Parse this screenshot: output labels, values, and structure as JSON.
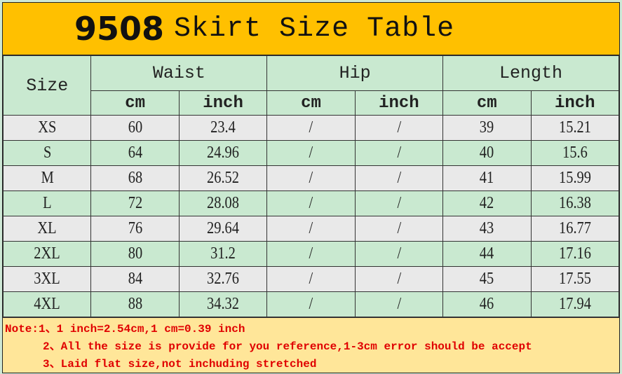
{
  "title": {
    "number": "9508",
    "text": "Skirt Size Table"
  },
  "headers": {
    "size": "Size",
    "groups": [
      "Waist",
      "Hip",
      "Length"
    ],
    "units": [
      "cm",
      "inch",
      "cm",
      "inch",
      "cm",
      "inch"
    ]
  },
  "rows": [
    [
      "XS",
      "60",
      "23.4",
      "/",
      "/",
      "39",
      "15.21"
    ],
    [
      "S",
      "64",
      "24.96",
      "/",
      "/",
      "40",
      "15.6"
    ],
    [
      "M",
      "68",
      "26.52",
      "/",
      "/",
      "41",
      "15.99"
    ],
    [
      "L",
      "72",
      "28.08",
      "/",
      "/",
      "42",
      "16.38"
    ],
    [
      "XL",
      "76",
      "29.64",
      "/",
      "/",
      "43",
      "16.77"
    ],
    [
      "2XL",
      "80",
      "31.2",
      "/",
      "/",
      "44",
      "17.16"
    ],
    [
      "3XL",
      "84",
      "32.76",
      "/",
      "/",
      "45",
      "17.55"
    ],
    [
      "4XL",
      "88",
      "34.32",
      "/",
      "/",
      "46",
      "17.94"
    ]
  ],
  "notes": [
    "Note:1、1 inch=2.54cm,1 cm=0.39 inch",
    "2、All the size is provide for you reference,1-3cm error should be accept",
    "3、Laid flat size,not inchuding stretched"
  ],
  "colors": {
    "title_bg": "#ffc000",
    "header_bg": "#c9e9d0",
    "alt_row_bg": "#e9e9e9",
    "note_bg": "#ffe699",
    "note_text": "#e00000"
  }
}
